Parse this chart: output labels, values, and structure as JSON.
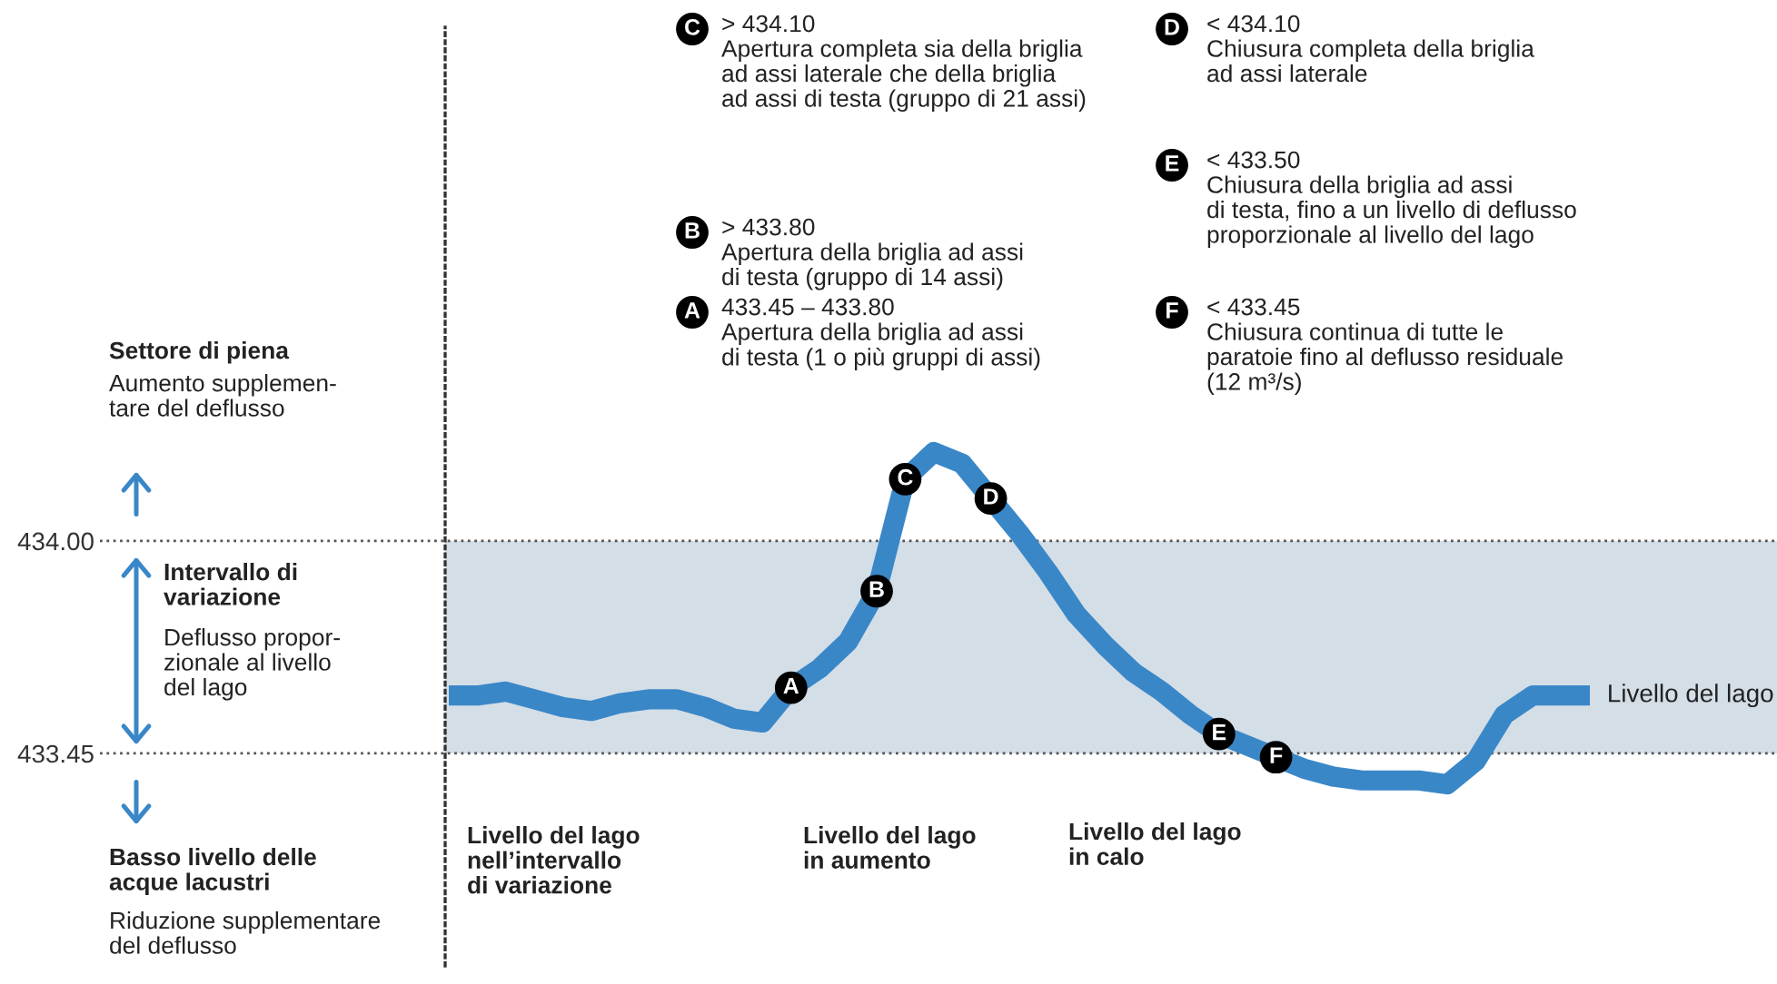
{
  "chart_data": {
    "type": "line",
    "categories": [
      null,
      null,
      null,
      null,
      null,
      null,
      null,
      null,
      null,
      null,
      null,
      null,
      null,
      null,
      null,
      null,
      null,
      null,
      null,
      null,
      null,
      null,
      null,
      null,
      null,
      null,
      null,
      null,
      null,
      null,
      null,
      null,
      null,
      null,
      null,
      null,
      null,
      null,
      null,
      null,
      null
    ],
    "series": [
      {
        "name": "Livello del lago",
        "color": "#3a87c8",
        "values": [
          433.6,
          433.6,
          433.61,
          433.59,
          433.57,
          433.56,
          433.58,
          433.59,
          433.59,
          433.57,
          433.54,
          433.53,
          433.62,
          433.67,
          433.74,
          433.87,
          434.16,
          434.23,
          434.2,
          434.11,
          434.02,
          433.92,
          433.81,
          433.73,
          433.66,
          433.61,
          433.55,
          433.5,
          433.47,
          433.44,
          433.41,
          433.39,
          433.38,
          433.38,
          433.38,
          433.37,
          433.43,
          433.55,
          433.6,
          433.6,
          433.6
        ],
        "value_labels": [
          null,
          null,
          null,
          null,
          null,
          null,
          null,
          null,
          null,
          null,
          null,
          null,
          "A",
          null,
          null,
          "B",
          "C",
          null,
          null,
          "D",
          null,
          null,
          null,
          null,
          null,
          null,
          null,
          "E",
          null,
          "F",
          null,
          null,
          null,
          null,
          null,
          null,
          null,
          null,
          null,
          null,
          null
        ]
      }
    ],
    "ylim": [
      432.9,
      435.33
    ],
    "yticks": [
      {
        "value": 433.45,
        "label": "433.45"
      },
      {
        "value": 434.0,
        "label": "434.00"
      }
    ],
    "ref_lines": [
      {
        "axis": "y",
        "value": 434.0,
        "line_style": "dotted",
        "color": "#555555"
      },
      {
        "axis": "y",
        "value": 433.45,
        "line_style": "dotted",
        "color": "#555555"
      }
    ],
    "bands": [
      {
        "axis": "y",
        "from": 433.45,
        "to": 434.0,
        "color": "#d4dee7"
      }
    ],
    "grid": false,
    "annotations": [
      "Settore di piena",
      "Aumento supplemen-\ntare del deflusso",
      "Intervallo di\nvariazione",
      "Deflusso propor-\nzionale al livello\ndel lago",
      "Basso livello delle\nacque lacustri",
      "Riduzione supplementare\ndel deflusso",
      "Livello del lago\nnell’intervallo\ndi variazione",
      "Livello del lago\nin aumento",
      "Livello del lago\nin calo",
      "> 434.10\nApertura completa sia della briglia\nad assi laterale che della briglia\nad assi di testa (gruppo di 21 assi)",
      "> 433.80\nApertura della briglia ad assi\ndi testa (gruppo di 14 assi)",
      "433.45 – 433.80\nApertura della briglia ad assi\ndi testa (1 o più gruppi di assi)",
      "< 434.10\nChiusura completa della briglia\nad assi laterale",
      "< 433.50\nChiusura della briglia ad assi\ndi testa, fino a un livello di deflusso\nproporzionale al livello del lago",
      "< 433.45\nChiusura continua di tutte le\nparatoie fino al deflusso residuale\n(12 m³/s)",
      "C",
      "B",
      "A",
      "D",
      "E",
      "F"
    ]
  }
}
